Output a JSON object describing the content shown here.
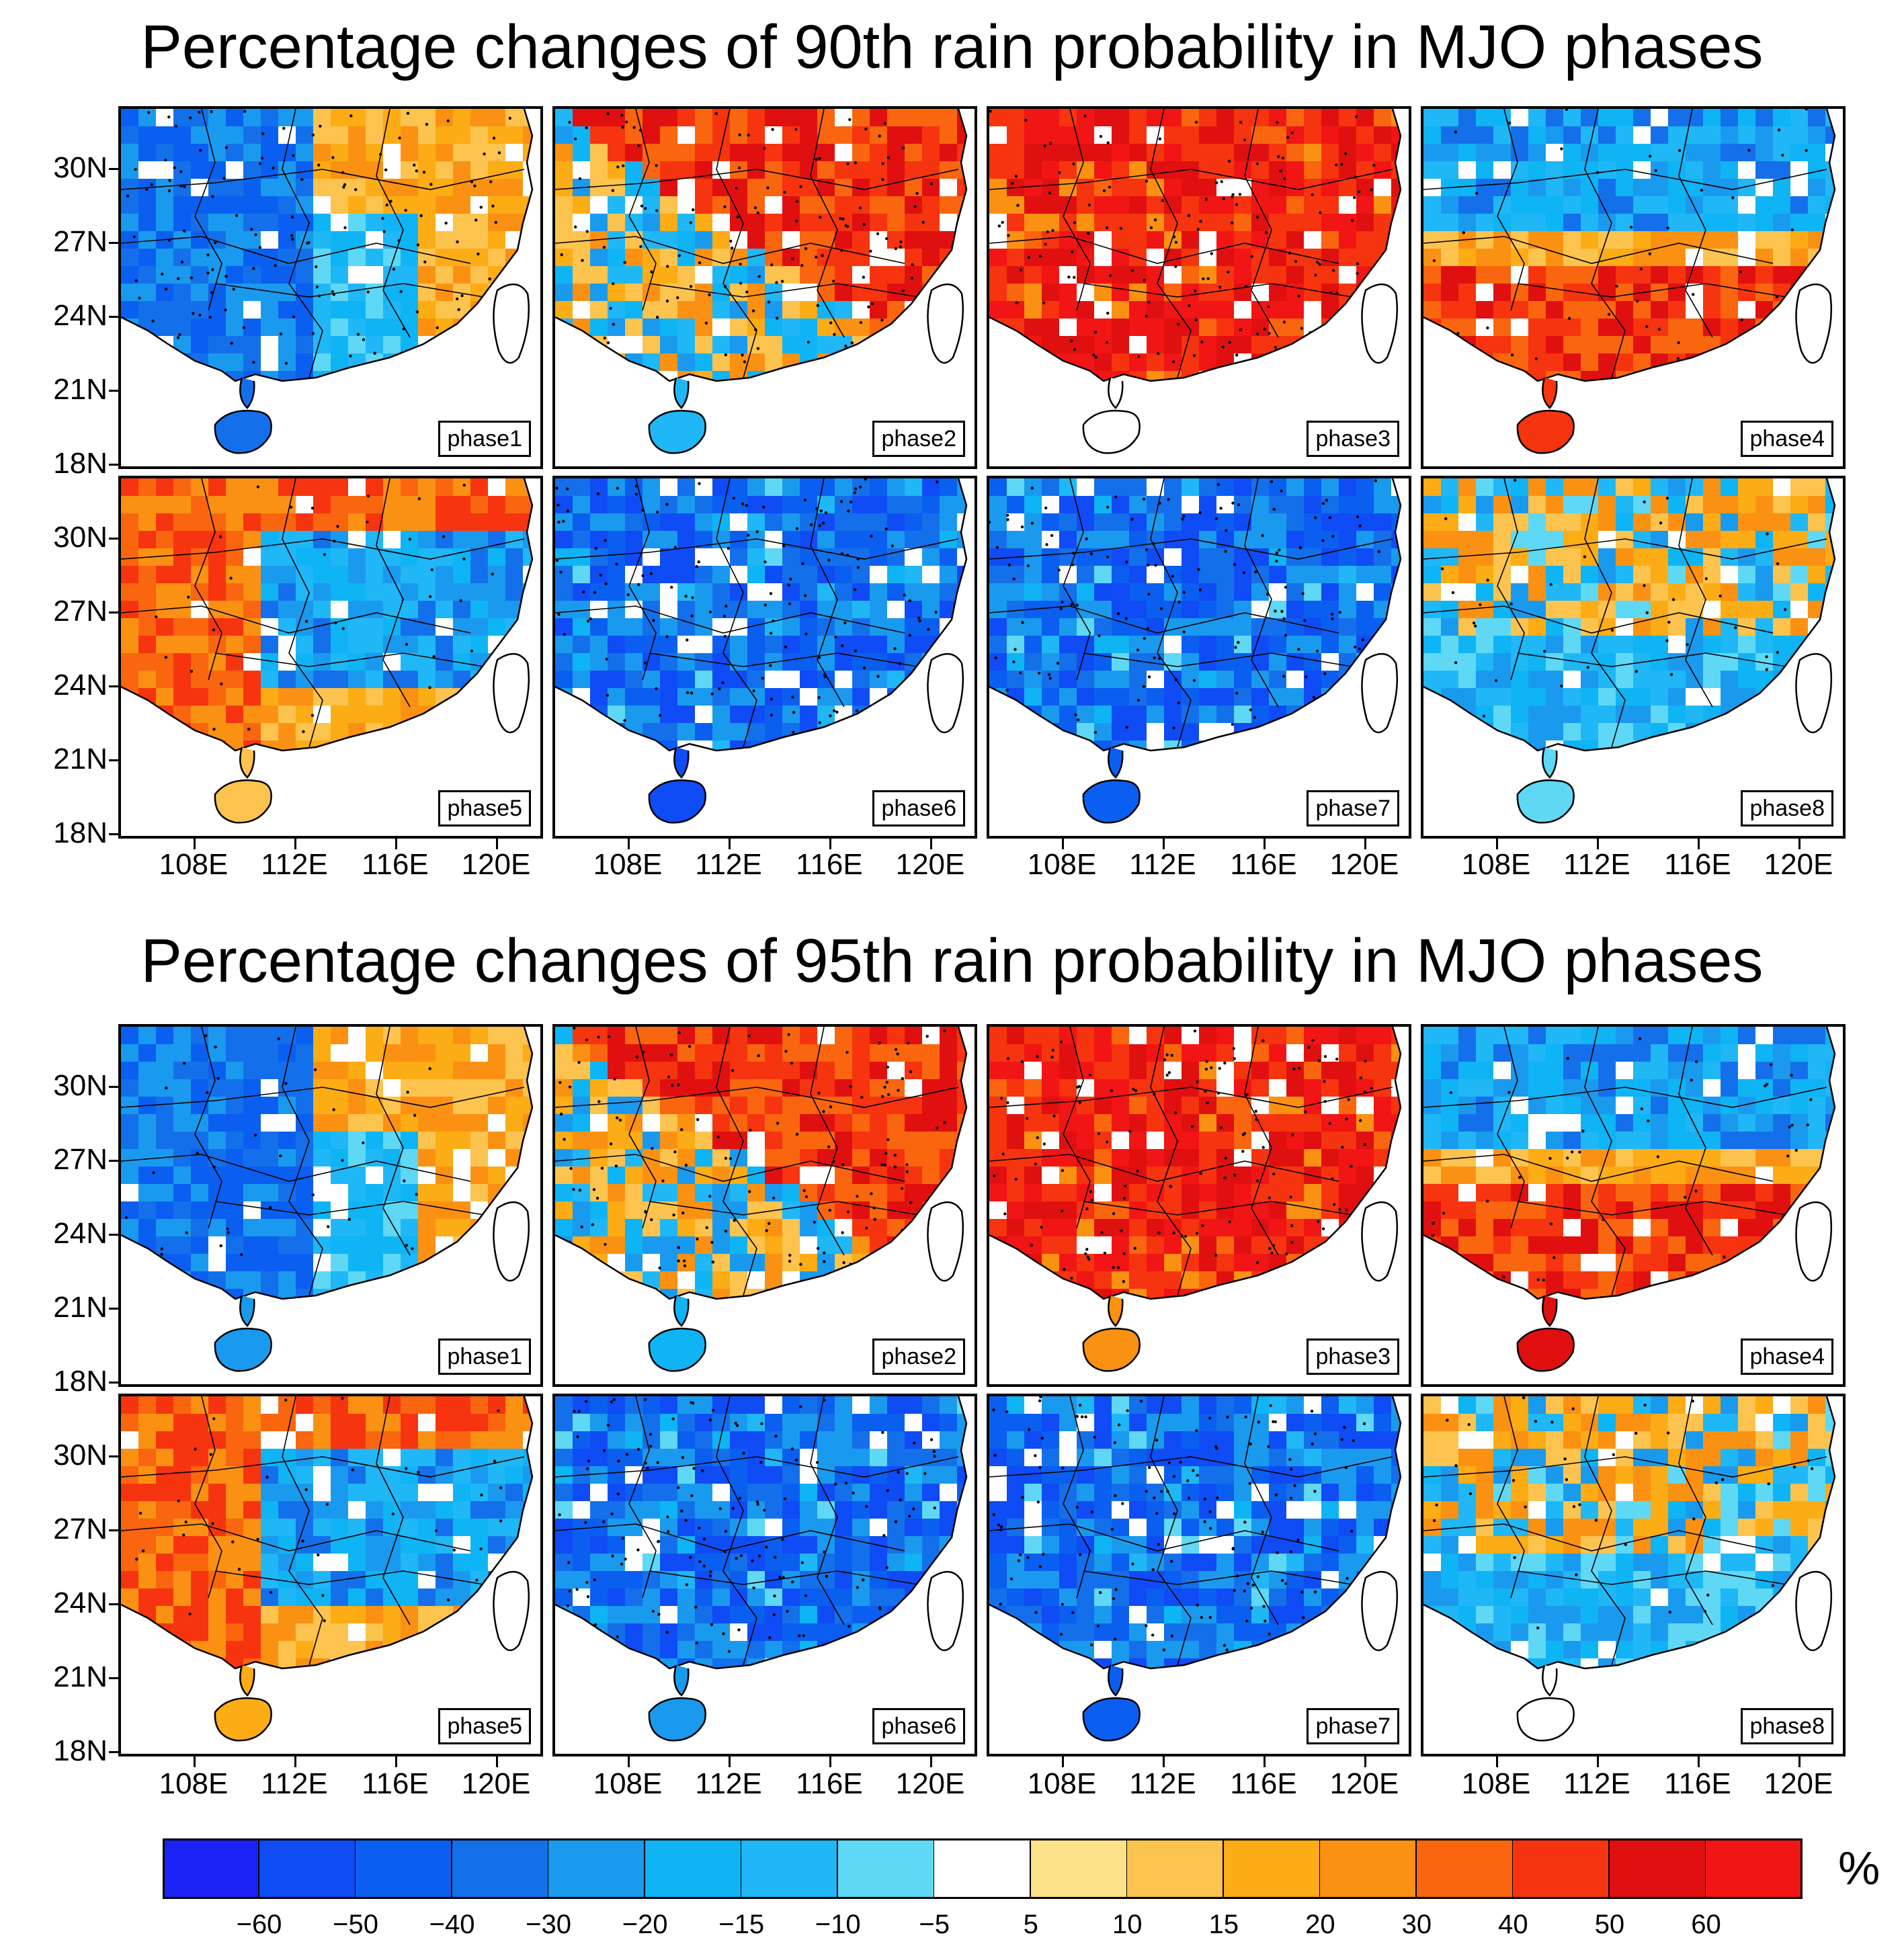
{
  "titles": {
    "top": "Percentage changes of 90th rain probability in MJO phases",
    "bottom": "Percentage changes of 95th rain probability in MJO phases"
  },
  "axes": {
    "lat_labels": [
      "30N",
      "27N",
      "24N",
      "21N",
      "18N"
    ],
    "lon_labels": [
      "108E",
      "112E",
      "116E",
      "120E"
    ]
  },
  "colorbar": {
    "unit": "%",
    "ticks": [
      "−60",
      "−50",
      "−40",
      "−30",
      "−20",
      "−15",
      "−10",
      "−5",
      "5",
      "10",
      "15",
      "20",
      "30",
      "40",
      "50",
      "60"
    ],
    "colors": [
      "#1a22f6",
      "#0f4cf5",
      "#0a5ff0",
      "#1470ea",
      "#1a9aee",
      "#0fb4f5",
      "#20b7f6",
      "#5fd8f5",
      "#ffffff",
      "#fde28a",
      "#fdc34f",
      "#fcac14",
      "#fb9112",
      "#f9660f",
      "#f6340f",
      "#e01010",
      "#f21515"
    ]
  },
  "chart_data": [
    {
      "type": "heatmap",
      "title": "Percentage changes of 90th rain probability in MJO phases",
      "region": {
        "lon": [
          104,
          122
        ],
        "lat": [
          18,
          32
        ]
      },
      "xlabel": "",
      "ylabel": "",
      "unit": "%",
      "panels": [
        {
          "label": "phase1",
          "dominant_sign": "negative",
          "pattern": "blue (-20 to -50) west and center, orange (+10 to +30) north and east coast"
        },
        {
          "label": "phase2",
          "dominant_sign": "positive",
          "pattern": "red (+30 to +50) northeast, orange across south, blue patches southwest"
        },
        {
          "label": "phase3",
          "dominant_sign": "positive",
          "pattern": "red (+30 to +60) nearly everywhere, strongest east"
        },
        {
          "label": "phase4",
          "dominant_sign": "mixed",
          "pattern": "blue north, red (+40 to +60) south coast and Hainan"
        },
        {
          "label": "phase5",
          "dominant_sign": "mixed",
          "pattern": "red northwest, blue center, orange south coast"
        },
        {
          "label": "phase6",
          "dominant_sign": "negative",
          "pattern": "blue (-30 to -60) nearly everywhere, strongest southeast"
        },
        {
          "label": "phase7",
          "dominant_sign": "negative",
          "pattern": "blue (-30 to -60) everywhere"
        },
        {
          "label": "phase8",
          "dominant_sign": "mixed",
          "pattern": "orange north, light blue south"
        }
      ]
    },
    {
      "type": "heatmap",
      "title": "Percentage changes of 95th rain probability in MJO phases",
      "region": {
        "lon": [
          104,
          122
        ],
        "lat": [
          18,
          32
        ]
      },
      "xlabel": "",
      "ylabel": "",
      "unit": "%",
      "panels": [
        {
          "label": "phase1",
          "dominant_sign": "mixed",
          "pattern": "blue west, orange north and east"
        },
        {
          "label": "phase2",
          "dominant_sign": "positive",
          "pattern": "red northeast and east, blue/orange mix southwest"
        },
        {
          "label": "phase3",
          "dominant_sign": "positive",
          "pattern": "red (+40 to +60) nearly everywhere"
        },
        {
          "label": "phase4",
          "dominant_sign": "mixed",
          "pattern": "blue north, red (+40 to +60) south"
        },
        {
          "label": "phase5",
          "dominant_sign": "mixed",
          "pattern": "red north and west, blue center, orange south"
        },
        {
          "label": "phase6",
          "dominant_sign": "negative",
          "pattern": "blue (-30 to -60) nearly everywhere"
        },
        {
          "label": "phase7",
          "dominant_sign": "negative",
          "pattern": "deep blue (-40 to -60) everywhere"
        },
        {
          "label": "phase8",
          "dominant_sign": "mixed",
          "pattern": "orange north and east, blue south and center"
        }
      ]
    }
  ]
}
